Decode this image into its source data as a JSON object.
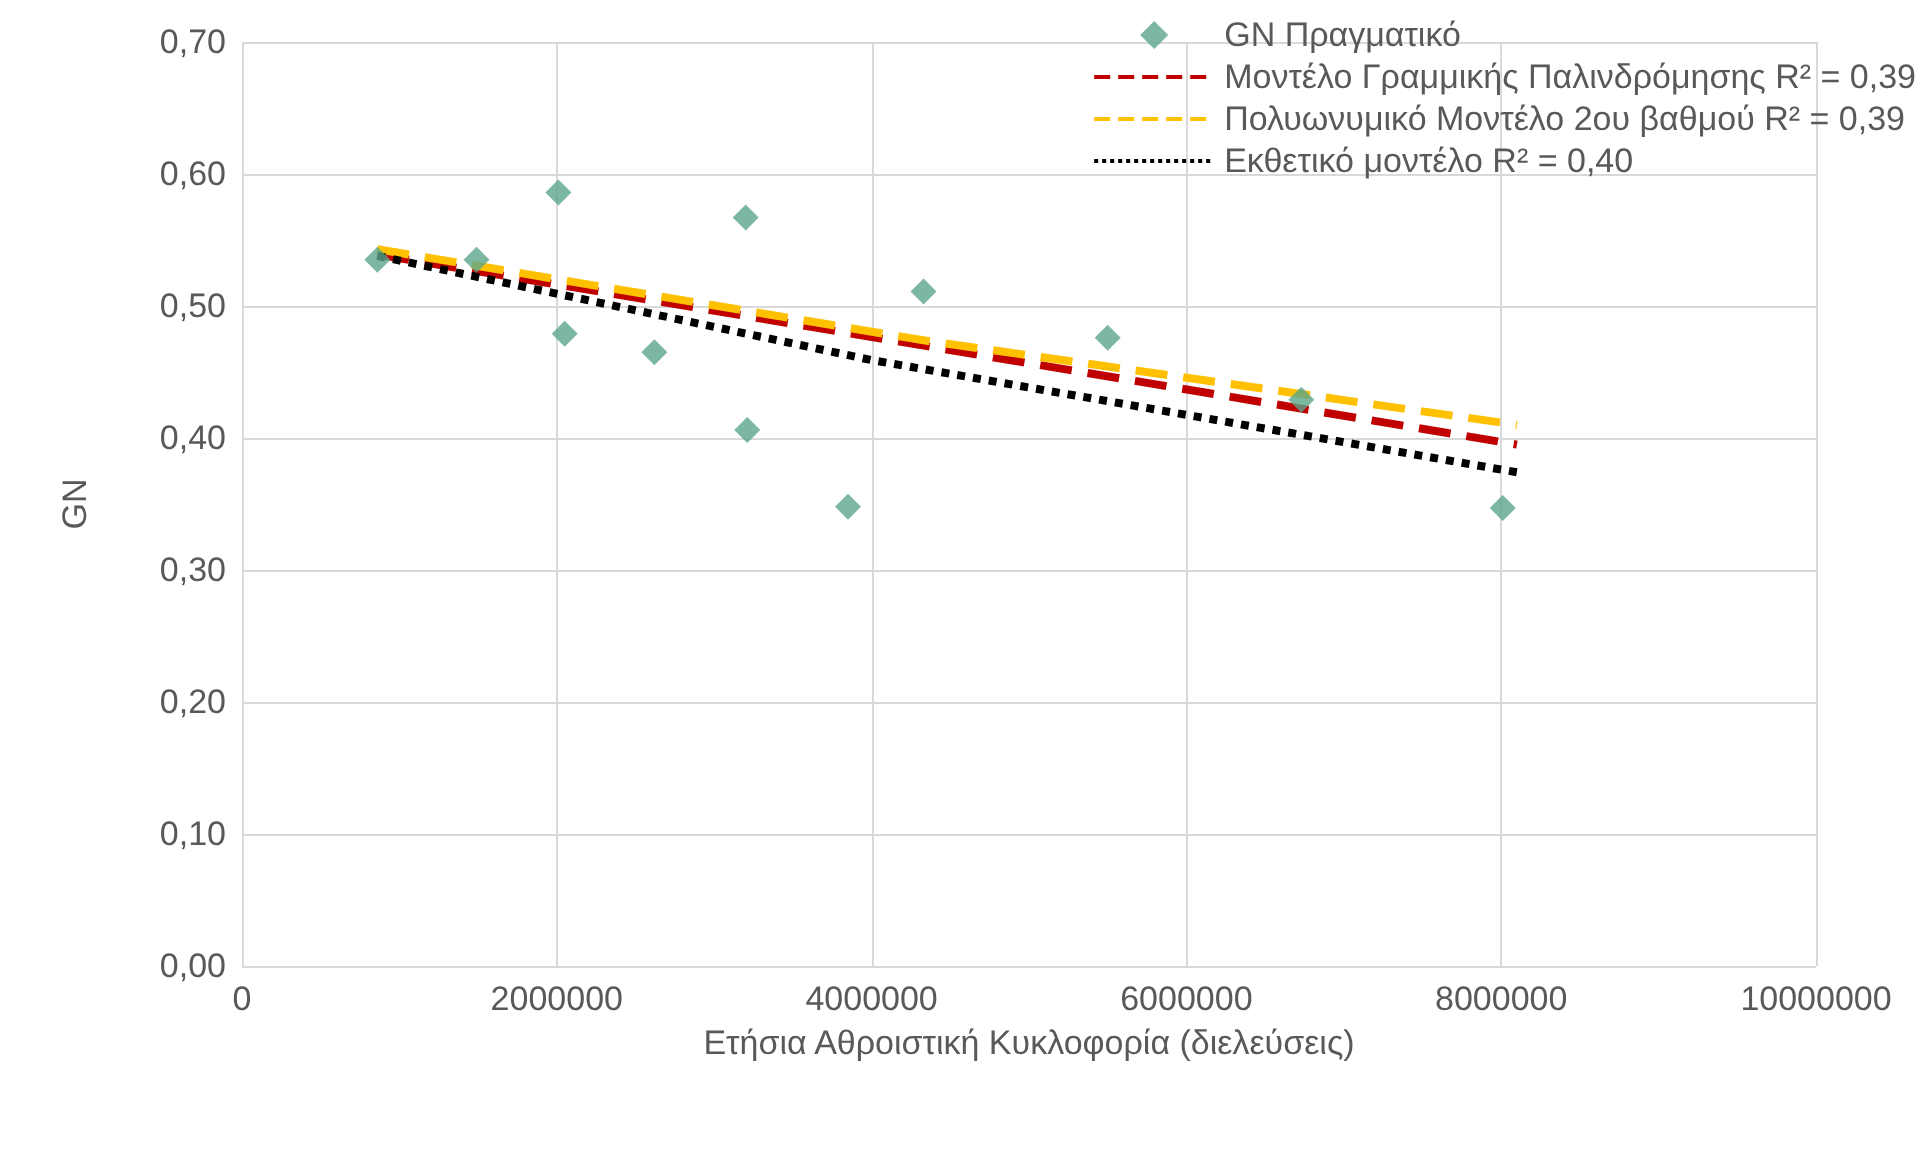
{
  "chart_data": {
    "type": "scatter",
    "xlabel": "Ετήσια Αθροιστική Κυκλοφορία (διελεύσεις)",
    "ylabel": "GN",
    "xlim": [
      0,
      10000000
    ],
    "xticks": [
      0,
      2000000,
      4000000,
      6000000,
      8000000,
      10000000
    ],
    "ylim": [
      0,
      0.7
    ],
    "yticks": [
      {
        "value": 0,
        "label": "0,00"
      },
      {
        "value": 0.1,
        "label": "0,10"
      },
      {
        "value": 0.2,
        "label": "0,20"
      },
      {
        "value": 0.3,
        "label": "0,30"
      },
      {
        "value": 0.4,
        "label": "0,40"
      },
      {
        "value": 0.5,
        "label": "0,50"
      },
      {
        "value": 0.6,
        "label": "0,60"
      },
      {
        "value": 0.7,
        "label": "0,70"
      }
    ],
    "grid": true,
    "legend": "top right",
    "series": [
      {
        "name": "GN Πραγματικό",
        "marker": "diamond",
        "color": "#5aa58a",
        "x": [
          860000,
          1490000,
          2010000,
          2050000,
          2620000,
          3200000,
          3210000,
          3850000,
          4330000,
          5500000,
          6730000,
          8010000
        ],
        "values": [
          0.535,
          0.535,
          0.586,
          0.479,
          0.465,
          0.567,
          0.406,
          0.348,
          0.511,
          0.476,
          0.429,
          0.347
        ]
      },
      {
        "name": "Μοντέλο Γραμμικής Παλινδρόμησης R² = 0,39",
        "type": "line",
        "marker": "none",
        "line_style": "dashed",
        "color": "#c00000",
        "x": [
          860000,
          8100000
        ],
        "values": [
          0.539,
          0.395
        ]
      },
      {
        "name": "Πολυωνυμικό Μοντέλο 2ου βαθμού R² = 0,39",
        "type": "line",
        "marker": "none",
        "line_style": "dashed",
        "color": "#ffc000",
        "x": [
          860000,
          4330000,
          8100000
        ],
        "values": [
          0.543,
          0.474,
          0.41
        ]
      },
      {
        "name": "Εκθετικό μοντέλο R² = 0,40",
        "type": "line",
        "marker": "none",
        "line_style": "dotted",
        "color": "#000000",
        "x": [
          860000,
          4000000,
          8100000
        ],
        "values": [
          0.538,
          0.459,
          0.374
        ]
      }
    ]
  }
}
